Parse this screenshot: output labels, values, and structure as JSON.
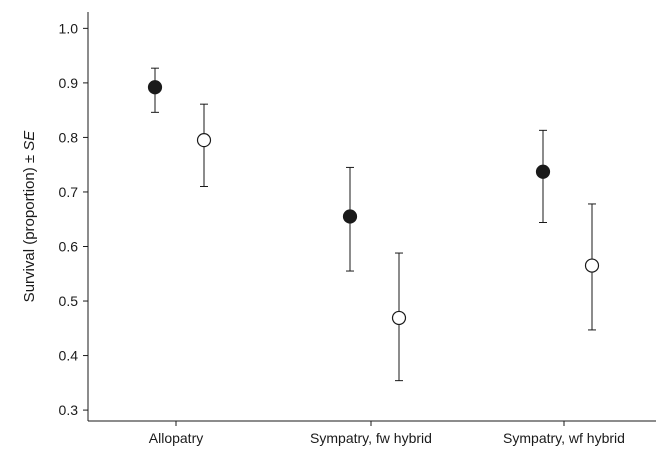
{
  "chart_data": {
    "type": "scatter",
    "categories": [
      "Allopatry",
      "Sympatry, fw hybrid",
      "Sympatry, wf hybrid"
    ],
    "title": "",
    "xlabel": "",
    "ylabel": "Survival (proportion) ± ",
    "ylabel_italic": "SE",
    "ylim": [
      0.28,
      1.03
    ],
    "yticks": [
      0.3,
      0.4,
      0.5,
      0.6,
      0.7,
      0.8,
      0.9,
      1.0
    ],
    "grid": false,
    "legend": "none",
    "series": [
      {
        "marker": "filled-circle",
        "color": "#1a1a1a",
        "values": [
          0.892,
          0.655,
          0.737
        ],
        "error_low": [
          0.846,
          0.555,
          0.644
        ],
        "error_high": [
          0.927,
          0.745,
          0.813
        ]
      },
      {
        "marker": "open-circle",
        "color": "#ffffff",
        "values": [
          0.795,
          0.469,
          0.565
        ],
        "error_low": [
          0.71,
          0.354,
          0.447
        ],
        "error_high": [
          0.861,
          0.588,
          0.678
        ]
      }
    ]
  }
}
